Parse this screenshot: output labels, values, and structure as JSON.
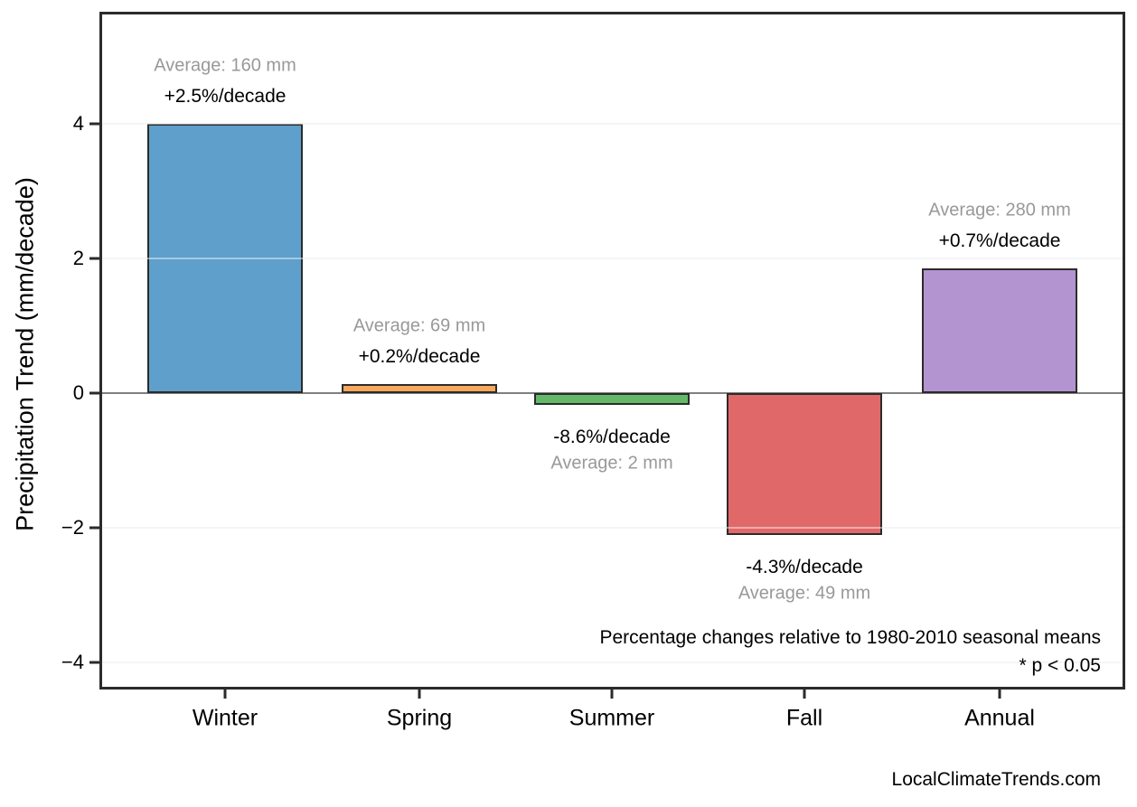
{
  "page": {
    "website": "LocalClimateTrends.com"
  },
  "chart_data": {
    "type": "bar",
    "title": "",
    "xlabel": "",
    "ylabel": "Precipitation Trend (mm/decade)",
    "ylim": [
      -4.65,
      5.65
    ],
    "grid": "horizontal light-gray gridlines at yticks, solid gray zero line, dark panel frame",
    "legend": "none",
    "categories": [
      "Winter",
      "Spring",
      "Summer",
      "Fall",
      "Annual"
    ],
    "values": [
      4.0,
      0.14,
      -0.17,
      -2.11,
      1.85
    ],
    "yticks": [
      {
        "value": 4,
        "label": "4"
      },
      {
        "value": 2,
        "label": "2"
      },
      {
        "value": 0,
        "label": "0"
      },
      {
        "value": -2,
        "label": "−2"
      },
      {
        "value": -4,
        "label": "−4"
      }
    ],
    "bars": [
      {
        "category": "Winter",
        "value": 4.0,
        "pct_label": "+2.5%/decade",
        "avg_label": "Average: 160 mm",
        "color": "#5F9FCB",
        "annotation_position": "above"
      },
      {
        "category": "Spring",
        "value": 0.14,
        "pct_label": "+0.2%/decade",
        "avg_label": "Average: 69 mm",
        "color": "#F9A75B",
        "annotation_position": "above"
      },
      {
        "category": "Summer",
        "value": -0.17,
        "pct_label": "-8.6%/decade",
        "avg_label": "Average: 2 mm",
        "color": "#63B968",
        "annotation_position": "below"
      },
      {
        "category": "Fall",
        "value": -2.11,
        "pct_label": "-4.3%/decade",
        "avg_label": "Average: 49 mm",
        "color": "#E16869",
        "annotation_position": "below"
      },
      {
        "category": "Annual",
        "value": 1.85,
        "pct_label": "+0.7%/decade",
        "avg_label": "Average: 280 mm",
        "color": "#B394D0",
        "annotation_position": "above"
      }
    ],
    "footnotes": [
      "Percentage changes relative to 1980-2010 seasonal means",
      "* p < 0.05"
    ],
    "colors": {
      "frame": "#2b2b2b",
      "zero_line": "#7f7f7f",
      "gridline": "#ededed",
      "bar_edge": "#2b2b2b",
      "avg_text": "#999999",
      "pct_text": "#000000"
    }
  }
}
